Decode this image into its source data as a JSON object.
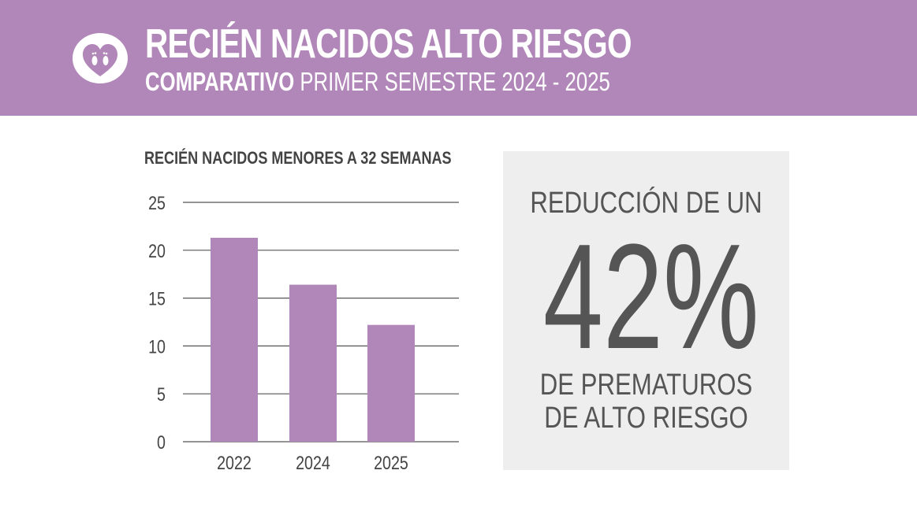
{
  "header": {
    "title": "RECIÉN NACIDOS ALTO RIESGO",
    "subtitle_bold": "COMPARATIVO",
    "subtitle_rest": " PRIMER SEMESTRE 2024 - 2025"
  },
  "colors": {
    "brand": "#b186b8",
    "text_dark": "#444444",
    "panel_bg": "#eeeeee"
  },
  "chart_data": {
    "type": "bar",
    "title": "RECIÉN NACIDOS MENORES A 32 SEMANAS",
    "categories": [
      "2022",
      "2024",
      "2025"
    ],
    "values": [
      21.3,
      16.4,
      12.2
    ],
    "yticks": [
      "0",
      "5",
      "10",
      "15",
      "20",
      "25"
    ],
    "ylim": [
      0,
      25
    ],
    "xlabel": "",
    "ylabel": "",
    "grid": true
  },
  "highlight": {
    "top_text": "REDUCCIÓN DE UN",
    "value": "42%",
    "bottom_line1": "DE PREMATUROS",
    "bottom_line2": "DE ALTO RIESGO"
  }
}
